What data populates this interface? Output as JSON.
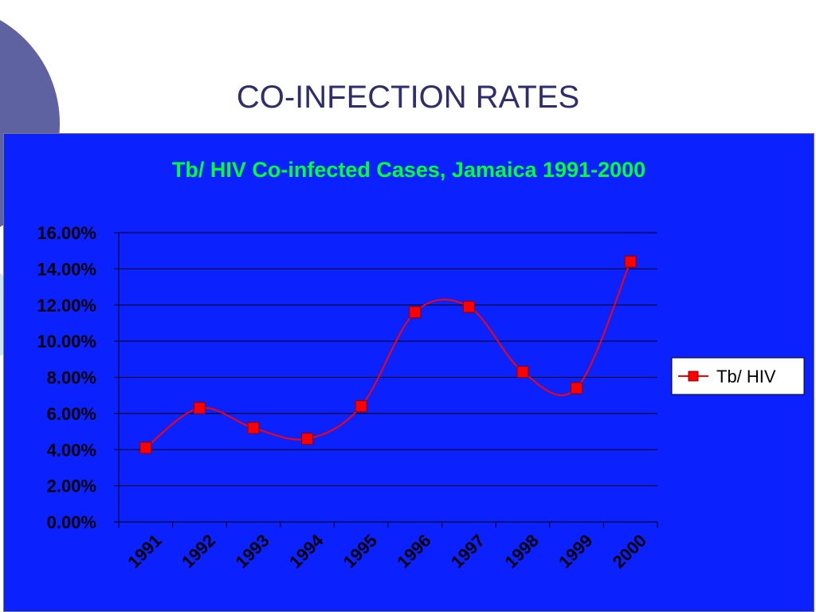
{
  "slide": {
    "title": "CO-INFECTION RATES",
    "decor_colors": {
      "circle": "#5f62a0",
      "accent": "#cfe6ee"
    }
  },
  "chart_data": {
    "type": "line",
    "title": "Tb/ HIV Co-infected Cases, Jamaica 1991-2000",
    "xlabel": "",
    "ylabel": "",
    "categories": [
      "1991",
      "1992",
      "1993",
      "1994",
      "1995",
      "1996",
      "1997",
      "1998",
      "1999",
      "2000"
    ],
    "series": [
      {
        "name": "Tb/ HIV",
        "values": [
          4.1,
          6.3,
          5.2,
          4.6,
          6.4,
          11.6,
          11.9,
          8.3,
          7.4,
          14.4
        ],
        "color": "#ff0000"
      }
    ],
    "ylim": [
      0,
      16
    ],
    "yticks": [
      "0.00%",
      "2.00%",
      "4.00%",
      "6.00%",
      "8.00%",
      "10.00%",
      "12.00%",
      "14.00%",
      "16.00%"
    ],
    "grid": true,
    "legend_position": "right",
    "background_color": "#0b22ff",
    "title_color": "#00ff33",
    "line_style": "smooth",
    "marker": "square"
  }
}
